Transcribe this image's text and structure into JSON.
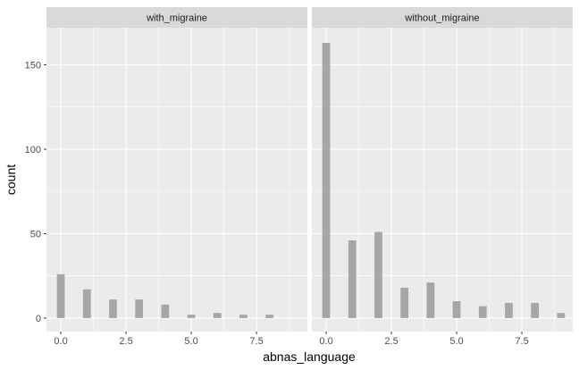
{
  "chart_data": {
    "type": "bar",
    "xlabel": "abnas_language",
    "ylabel": "count",
    "xlim": [
      -0.55,
      9.45
    ],
    "ylim": [
      -8,
      172
    ],
    "x_ticks": [
      0,
      2.5,
      5,
      7.5
    ],
    "x_tick_labels": [
      "0.0",
      "2.5",
      "5.0",
      "7.5"
    ],
    "y_ticks": [
      0,
      50,
      100,
      150
    ],
    "y_tick_labels": [
      "0",
      "50",
      "100",
      "150"
    ],
    "bin_width": 0.3,
    "grid": true,
    "colors": {
      "panel_background": "#ebebeb",
      "strip_background": "#d9d9d9",
      "grid_major": "#ffffff",
      "bar_fill": "#a6a6a6"
    },
    "panels": [
      {
        "strip_label": "with_migraine",
        "x": [
          0,
          1,
          2,
          3,
          4,
          5,
          6,
          7,
          8
        ],
        "values": [
          26,
          17,
          11,
          11,
          8,
          2,
          3,
          2,
          2
        ]
      },
      {
        "strip_label": "without_migraine",
        "x": [
          0,
          1,
          2,
          3,
          4,
          5,
          6,
          7,
          8,
          9
        ],
        "values": [
          163,
          46,
          51,
          18,
          21,
          10,
          7,
          9,
          9,
          3
        ]
      }
    ]
  }
}
